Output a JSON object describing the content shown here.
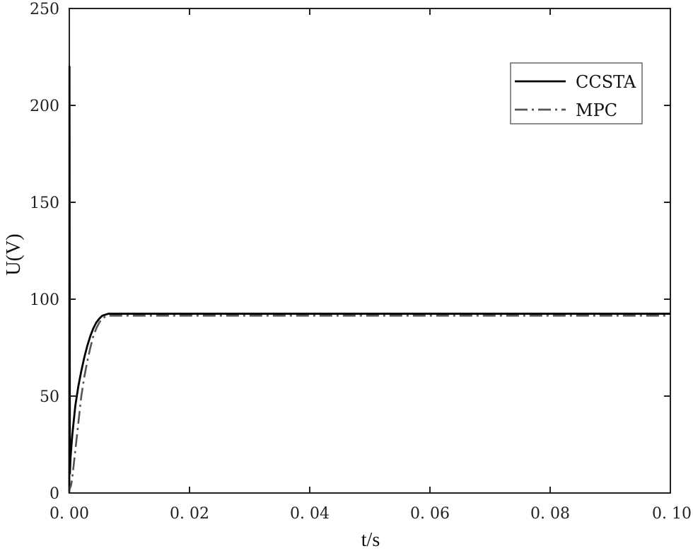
{
  "chart_data": {
    "type": "line",
    "title": "",
    "xlabel": "t/s",
    "ylabel": "U(V)",
    "xlim": [
      0,
      0.1
    ],
    "ylim": [
      0,
      250
    ],
    "xticks": [
      0,
      0.02,
      0.04,
      0.06,
      0.08,
      0.1
    ],
    "xtick_labels": [
      "0. 00",
      "0. 02",
      "0. 04",
      "0. 06",
      "0. 08",
      "0. 10"
    ],
    "yticks": [
      0,
      50,
      100,
      150,
      200,
      250
    ],
    "ytick_labels": [
      "0",
      "50",
      "100",
      "150",
      "200",
      "250"
    ],
    "grid": false,
    "legend_position": "top-right",
    "series": [
      {
        "name": "CCSTA",
        "style": "solid",
        "color": "#000000",
        "x": [
          0,
          3e-05,
          0.0001,
          0.0002,
          0.0005,
          0.001,
          0.0015,
          0.002,
          0.0025,
          0.003,
          0.0035,
          0.004,
          0.0045,
          0.005,
          0.0055,
          0.006,
          0.0065,
          0.007,
          0.1
        ],
        "y": [
          0,
          220,
          10,
          18,
          30,
          45,
          55,
          63,
          70,
          76,
          81,
          85,
          88,
          90,
          91.5,
          92,
          92.5,
          92.5,
          92.5
        ]
      },
      {
        "name": "MPC",
        "style": "dashdot",
        "color": "#555555",
        "x": [
          0,
          5e-05,
          0.0003,
          0.0005,
          0.001,
          0.0015,
          0.002,
          0.0025,
          0.003,
          0.0035,
          0.004,
          0.0045,
          0.005,
          0.0055,
          0.006,
          0.0065,
          0.007,
          0.1
        ],
        "y": [
          0,
          2,
          4,
          8,
          22,
          36,
          50,
          60,
          68,
          75,
          81,
          85,
          88,
          90,
          91,
          91.5,
          91.5,
          91.5
        ]
      }
    ]
  }
}
